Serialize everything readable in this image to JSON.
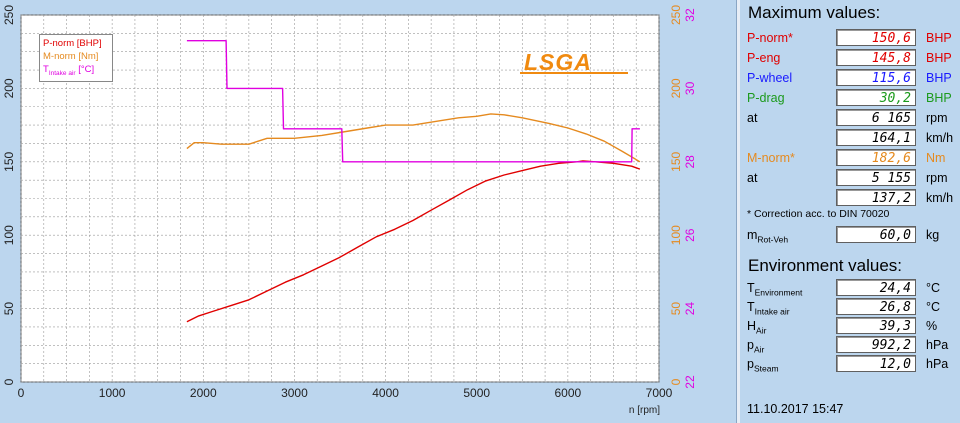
{
  "chart_data": {
    "type": "line",
    "xlabel": "n [rpm]",
    "x_ticks": [
      "0",
      "1000",
      "2000",
      "3000",
      "4000",
      "5000",
      "6000",
      "7000"
    ],
    "xlim": [
      0,
      7000
    ],
    "y_left_ticks": [
      "0",
      "50",
      "100",
      "150",
      "200",
      "250"
    ],
    "ylim_left": [
      0,
      250
    ],
    "y_orange_ticks": [
      "0",
      "50",
      "100",
      "150",
      "200",
      "250"
    ],
    "ylim_orange": [
      0,
      250
    ],
    "y_magenta_ticks": [
      "22",
      "24",
      "26",
      "28",
      "30",
      "32"
    ],
    "ylim_magenta": [
      22,
      32
    ],
    "grid": true,
    "legend_placement": "top-left",
    "legend": [
      {
        "text": "P-norm [BHP]",
        "color": "#e00000"
      },
      {
        "text": "M-norm [Nm]",
        "color": "#e58a1f"
      },
      {
        "text_main": "T",
        "text_sub": "Intake air",
        "text_tail": " [°C]",
        "color": "#e000e0"
      }
    ],
    "series": [
      {
        "name": "P-norm [BHP]",
        "color": "#e00000",
        "axis": "left",
        "x": [
          1820,
          1950,
          2100,
          2300,
          2500,
          2700,
          2900,
          3100,
          3300,
          3500,
          3700,
          3900,
          4100,
          4300,
          4500,
          4700,
          4900,
          5100,
          5300,
          5500,
          5700,
          5900,
          6100,
          6165,
          6300,
          6500,
          6700,
          6790
        ],
        "y": [
          41,
          45,
          48,
          52,
          56,
          62,
          68,
          73,
          79,
          85,
          92,
          99,
          104,
          110,
          117,
          124,
          131,
          137,
          141,
          144,
          147,
          149,
          150,
          150.6,
          150,
          149,
          147,
          145
        ]
      },
      {
        "name": "M-norm [Nm]",
        "color": "#e58a1f",
        "axis": "orange",
        "x": [
          1820,
          1900,
          2000,
          2200,
          2500,
          2700,
          3000,
          3300,
          3600,
          3800,
          4000,
          4300,
          4600,
          4800,
          5000,
          5155,
          5300,
          5500,
          5800,
          6000,
          6200,
          6400,
          6600,
          6790
        ],
        "y": [
          159,
          163,
          163,
          162,
          162,
          166,
          166,
          168,
          171,
          173,
          175,
          175,
          178,
          180,
          181,
          182.6,
          182,
          180,
          176,
          173,
          169,
          164,
          157,
          150
        ]
      },
      {
        "name": "T Intake air [°C]",
        "color": "#e000e0",
        "axis": "magenta",
        "x": [
          1820,
          2250,
          2260,
          2870,
          2880,
          3520,
          3530,
          6700,
          6705,
          6790
        ],
        "y": [
          31.3,
          31.3,
          30.0,
          30.0,
          28.9,
          28.9,
          28.0,
          28.0,
          28.9,
          28.9
        ]
      }
    ]
  },
  "logo_text": "LSGA",
  "maximum": {
    "title": "Maximum values:",
    "rows": [
      {
        "label": "P-norm*",
        "value": "150,6",
        "unit": "BHP",
        "label_color": "#e00000",
        "value_color": "#e00000",
        "unit_color": "#e00000"
      },
      {
        "label": "P-eng",
        "value": "145,8",
        "unit": "BHP",
        "label_color": "#e00000",
        "value_color": "#e00000",
        "unit_color": "#e00000"
      },
      {
        "label": "P-wheel",
        "value": "115,6",
        "unit": "BHP",
        "label_color": "#1a1aff",
        "value_color": "#1a1aff",
        "unit_color": "#1a1aff"
      },
      {
        "label": "P-drag",
        "value": "30,2",
        "unit": "BHP",
        "label_color": "#1c9a1c",
        "value_color": "#1c9a1c",
        "unit_color": "#1c9a1c"
      },
      {
        "label": "at",
        "value": "6 165",
        "unit": "rpm",
        "label_color": "#000000",
        "value_color": "#000000",
        "unit_color": "#000000"
      },
      {
        "label": "",
        "value": "164,1",
        "unit": "km/h",
        "label_color": "#000000",
        "value_color": "#000000",
        "unit_color": "#000000"
      },
      {
        "label": "M-norm*",
        "value": "182,6",
        "unit": "Nm",
        "label_color": "#e58a1f",
        "value_color": "#e58a1f",
        "unit_color": "#e58a1f"
      },
      {
        "label": "at",
        "value": "5 155",
        "unit": "rpm",
        "label_color": "#000000",
        "value_color": "#000000",
        "unit_color": "#000000"
      },
      {
        "label": "",
        "value": "137,2",
        "unit": "km/h",
        "label_color": "#000000",
        "value_color": "#000000",
        "unit_color": "#000000"
      }
    ],
    "correction_note": "* Correction acc. to DIN 70020",
    "mass": {
      "label_main": "m",
      "label_sub": "Rot-Veh",
      "value": "60,0",
      "unit": "kg"
    }
  },
  "environment": {
    "title": "Environment values:",
    "rows": [
      {
        "label_main": "T",
        "label_sub": "Environment",
        "value": "24,4",
        "unit": "°C"
      },
      {
        "label_main": "T",
        "label_sub": "Intake air",
        "value": "26,8",
        "unit": "°C"
      },
      {
        "label_main": "H",
        "label_sub": "Air",
        "value": "39,3",
        "unit": "%"
      },
      {
        "label_main": "p",
        "label_sub": "Air",
        "value": "992,2",
        "unit": "hPa"
      },
      {
        "label_main": "p",
        "label_sub": "Steam",
        "value": "12,0",
        "unit": "hPa"
      }
    ]
  },
  "timestamp": "11.10.2017  15:47"
}
